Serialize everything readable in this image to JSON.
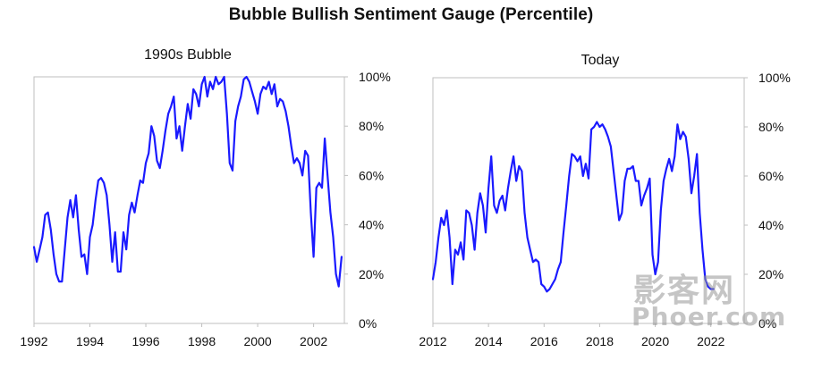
{
  "title": "Bubble Bullish Sentiment Gauge (Percentile)",
  "watermark": {
    "line1": "影客网",
    "line2": "Phoer.com"
  },
  "colors": {
    "line": "#1a1aff",
    "frame": "#bfbfbf",
    "text": "#111111"
  },
  "chart_data": [
    {
      "type": "line",
      "title": "1990s Bubble",
      "xlim": [
        1992,
        2003.1
      ],
      "ylim": [
        0,
        100
      ],
      "x_ticks": [
        1992,
        1994,
        1996,
        1998,
        2000,
        2002
      ],
      "y_ticks": [
        "0%",
        "20%",
        "40%",
        "60%",
        "80%",
        "100%"
      ],
      "series": [
        {
          "x": [
            1992.0,
            1992.1,
            1992.2,
            1992.3,
            1992.4,
            1992.5,
            1992.6,
            1992.7,
            1992.8,
            1992.9,
            1993.0,
            1993.1,
            1993.2,
            1993.3,
            1993.4,
            1993.5,
            1993.6,
            1993.7,
            1993.8,
            1993.9,
            1994.0,
            1994.1,
            1994.2,
            1994.3,
            1994.4,
            1994.5,
            1994.6,
            1994.7,
            1994.8,
            1994.9,
            1995.0,
            1995.1,
            1995.2,
            1995.3,
            1995.4,
            1995.5,
            1995.6,
            1995.7,
            1995.8,
            1995.9,
            1996.0,
            1996.1,
            1996.2,
            1996.3,
            1996.4,
            1996.5,
            1996.6,
            1996.7,
            1996.8,
            1996.9,
            1997.0,
            1997.1,
            1997.2,
            1997.3,
            1997.4,
            1997.5,
            1997.6,
            1997.7,
            1997.8,
            1997.9,
            1998.0,
            1998.1,
            1998.2,
            1998.3,
            1998.4,
            1998.5,
            1998.6,
            1998.7,
            1998.8,
            1998.9,
            1999.0,
            1999.1,
            1999.2,
            1999.3,
            1999.4,
            1999.5,
            1999.6,
            1999.7,
            1999.8,
            1999.9,
            2000.0,
            2000.1,
            2000.2,
            2000.3,
            2000.4,
            2000.5,
            2000.6,
            2000.7,
            2000.8,
            2000.9,
            2001.0,
            2001.1,
            2001.2,
            2001.3,
            2001.4,
            2001.5,
            2001.6,
            2001.7,
            2001.8,
            2001.9,
            2002.0,
            2002.1,
            2002.2,
            2002.3,
            2002.4,
            2002.5,
            2002.6,
            2002.7,
            2002.8,
            2002.9,
            2003.0
          ],
          "y": [
            31,
            25,
            30,
            35,
            44,
            45,
            38,
            28,
            20,
            17,
            17,
            30,
            43,
            50,
            43,
            52,
            38,
            27,
            28,
            20,
            35,
            40,
            50,
            58,
            59,
            57,
            52,
            40,
            25,
            37,
            21,
            21,
            37,
            30,
            44,
            49,
            45,
            52,
            58,
            57,
            65,
            69,
            80,
            76,
            66,
            63,
            70,
            78,
            85,
            88,
            92,
            75,
            80,
            70,
            80,
            89,
            83,
            95,
            93,
            88,
            97,
            100,
            92,
            98,
            95,
            100,
            97,
            98,
            100,
            85,
            65,
            62,
            82,
            88,
            92,
            99,
            100,
            98,
            94,
            90,
            85,
            93,
            96,
            95,
            98,
            93,
            97,
            88,
            91,
            90,
            86,
            80,
            72,
            65,
            67,
            65,
            60,
            70,
            68,
            45,
            27,
            55,
            57,
            55,
            75,
            60,
            45,
            35,
            20,
            15,
            27
          ]
        }
      ]
    },
    {
      "type": "line",
      "title": "Today",
      "xlim": [
        2012,
        2023.2
      ],
      "ylim": [
        0,
        100
      ],
      "x_ticks": [
        2012,
        2014,
        2016,
        2018,
        2020,
        2022
      ],
      "y_ticks": [
        "0%",
        "20%",
        "40%",
        "60%",
        "80%",
        "100%"
      ],
      "series": [
        {
          "x": [
            2012.0,
            2012.1,
            2012.2,
            2012.3,
            2012.4,
            2012.5,
            2012.6,
            2012.7,
            2012.8,
            2012.9,
            2013.0,
            2013.1,
            2013.2,
            2013.3,
            2013.4,
            2013.5,
            2013.6,
            2013.7,
            2013.8,
            2013.9,
            2014.0,
            2014.1,
            2014.2,
            2014.3,
            2014.4,
            2014.5,
            2014.6,
            2014.7,
            2014.8,
            2014.9,
            2015.0,
            2015.1,
            2015.2,
            2015.3,
            2015.4,
            2015.5,
            2015.6,
            2015.7,
            2015.8,
            2015.9,
            2016.0,
            2016.1,
            2016.2,
            2016.3,
            2016.4,
            2016.5,
            2016.6,
            2016.7,
            2016.8,
            2016.9,
            2017.0,
            2017.1,
            2017.2,
            2017.3,
            2017.4,
            2017.5,
            2017.6,
            2017.7,
            2017.8,
            2017.9,
            2018.0,
            2018.1,
            2018.2,
            2018.3,
            2018.4,
            2018.5,
            2018.6,
            2018.7,
            2018.8,
            2018.9,
            2019.0,
            2019.1,
            2019.2,
            2019.3,
            2019.4,
            2019.5,
            2019.6,
            2019.7,
            2019.8,
            2019.9,
            2020.0,
            2020.1,
            2020.2,
            2020.3,
            2020.4,
            2020.5,
            2020.6,
            2020.7,
            2020.8,
            2020.9,
            2021.0,
            2021.1,
            2021.2,
            2021.3,
            2021.4,
            2021.5,
            2021.6,
            2021.7,
            2021.8,
            2021.9,
            2022.0,
            2022.1
          ],
          "y": [
            18,
            25,
            35,
            43,
            40,
            46,
            35,
            16,
            30,
            28,
            33,
            26,
            46,
            45,
            40,
            30,
            45,
            53,
            48,
            37,
            55,
            68,
            48,
            45,
            50,
            52,
            46,
            55,
            62,
            68,
            58,
            64,
            62,
            45,
            35,
            30,
            25,
            26,
            25,
            16,
            15,
            13,
            14,
            16,
            18,
            22,
            25,
            37,
            48,
            60,
            69,
            68,
            66,
            68,
            60,
            65,
            59,
            79,
            80,
            82,
            80,
            81,
            79,
            76,
            72,
            62,
            52,
            42,
            45,
            58,
            63,
            63,
            64,
            58,
            58,
            48,
            52,
            55,
            59,
            28,
            20,
            25,
            46,
            58,
            63,
            67,
            62,
            68,
            81,
            75,
            78,
            76,
            67,
            53,
            60,
            69,
            45,
            30,
            18,
            15,
            14,
            14
          ]
        }
      ]
    }
  ]
}
